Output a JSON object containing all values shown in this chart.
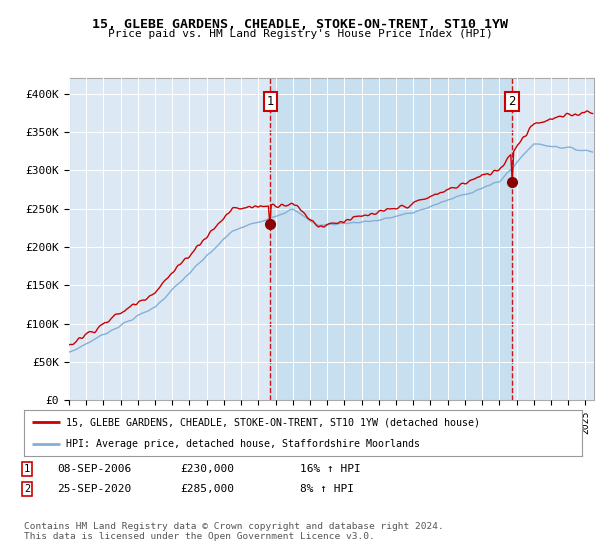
{
  "title": "15, GLEBE GARDENS, CHEADLE, STOKE-ON-TRENT, ST10 1YW",
  "subtitle": "Price paid vs. HM Land Registry's House Price Index (HPI)",
  "ylabel_ticks": [
    "£0",
    "£50K",
    "£100K",
    "£150K",
    "£200K",
    "£250K",
    "£300K",
    "£350K",
    "£400K"
  ],
  "ytick_values": [
    0,
    50000,
    100000,
    150000,
    200000,
    250000,
    300000,
    350000,
    400000
  ],
  "ylim": [
    0,
    420000
  ],
  "xlim_start": 1995.0,
  "xlim_end": 2025.5,
  "bg_color": "#dce9f5",
  "highlight_color": "#c8dff0",
  "red_line_color": "#cc0000",
  "blue_line_color": "#85afd4",
  "sale1_x": 2006.69,
  "sale1_y": 230000,
  "sale2_x": 2020.73,
  "sale2_y": 285000,
  "legend_line1": "15, GLEBE GARDENS, CHEADLE, STOKE-ON-TRENT, ST10 1YW (detached house)",
  "legend_line2": "HPI: Average price, detached house, Staffordshire Moorlands",
  "table_row1_date": "08-SEP-2006",
  "table_row1_price": "£230,000",
  "table_row1_hpi": "16% ↑ HPI",
  "table_row2_date": "25-SEP-2020",
  "table_row2_price": "£285,000",
  "table_row2_hpi": "8% ↑ HPI",
  "footer": "Contains HM Land Registry data © Crown copyright and database right 2024.\nThis data is licensed under the Open Government Licence v3.0."
}
